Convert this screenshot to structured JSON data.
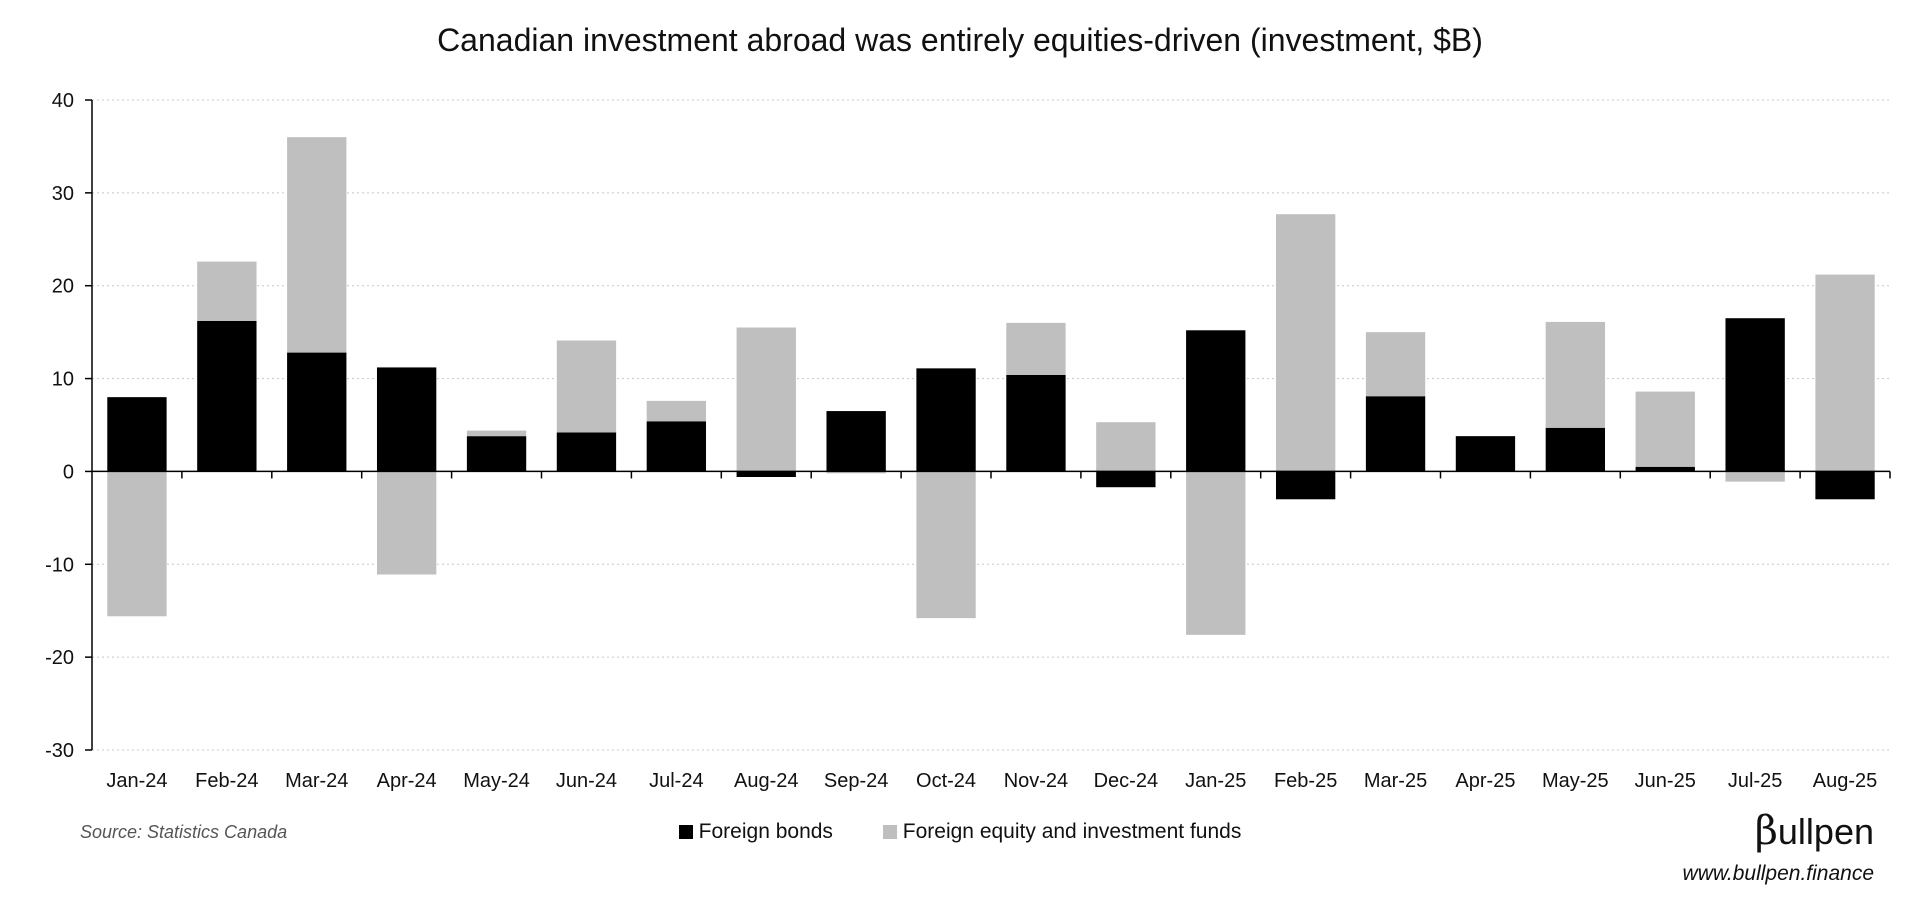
{
  "chart_data": {
    "type": "bar",
    "stacked": true,
    "title": "Canadian investment abroad was entirely equities-driven (investment, $B)",
    "categories": [
      "Jan-24",
      "Feb-24",
      "Mar-24",
      "Apr-24",
      "May-24",
      "Jun-24",
      "Jul-24",
      "Aug-24",
      "Sep-24",
      "Oct-24",
      "Nov-24",
      "Dec-24",
      "Jan-25",
      "Feb-25",
      "Mar-25",
      "Apr-25",
      "May-25",
      "Jun-25",
      "Jul-25",
      "Aug-25"
    ],
    "series": [
      {
        "name": "Foreign bonds",
        "color": "#000000",
        "values": [
          8.0,
          16.2,
          12.8,
          11.2,
          3.8,
          4.2,
          5.4,
          -0.6,
          6.5,
          11.1,
          10.4,
          -1.7,
          15.2,
          -3.0,
          8.1,
          3.8,
          4.7,
          0.5,
          16.5,
          -3.0
        ]
      },
      {
        "name": "Foreign equity and investment funds",
        "color": "#bfbfbf",
        "values": [
          -15.6,
          6.4,
          23.2,
          -11.1,
          0.6,
          9.9,
          2.2,
          15.5,
          -0.2,
          -15.8,
          5.6,
          5.3,
          -17.6,
          27.7,
          6.9,
          0.0,
          11.4,
          8.1,
          -1.1,
          21.2
        ]
      }
    ],
    "ylim": [
      -30,
      40
    ],
    "yticks": [
      40,
      30,
      20,
      10,
      0,
      -10,
      -20,
      -30
    ],
    "grid": true,
    "legend_position": "bottom"
  },
  "footer": {
    "source": "Source: Statistics Canada",
    "brand_symbol": "β",
    "brand_rest": "ullpen",
    "website": "www.bullpen.finance"
  }
}
